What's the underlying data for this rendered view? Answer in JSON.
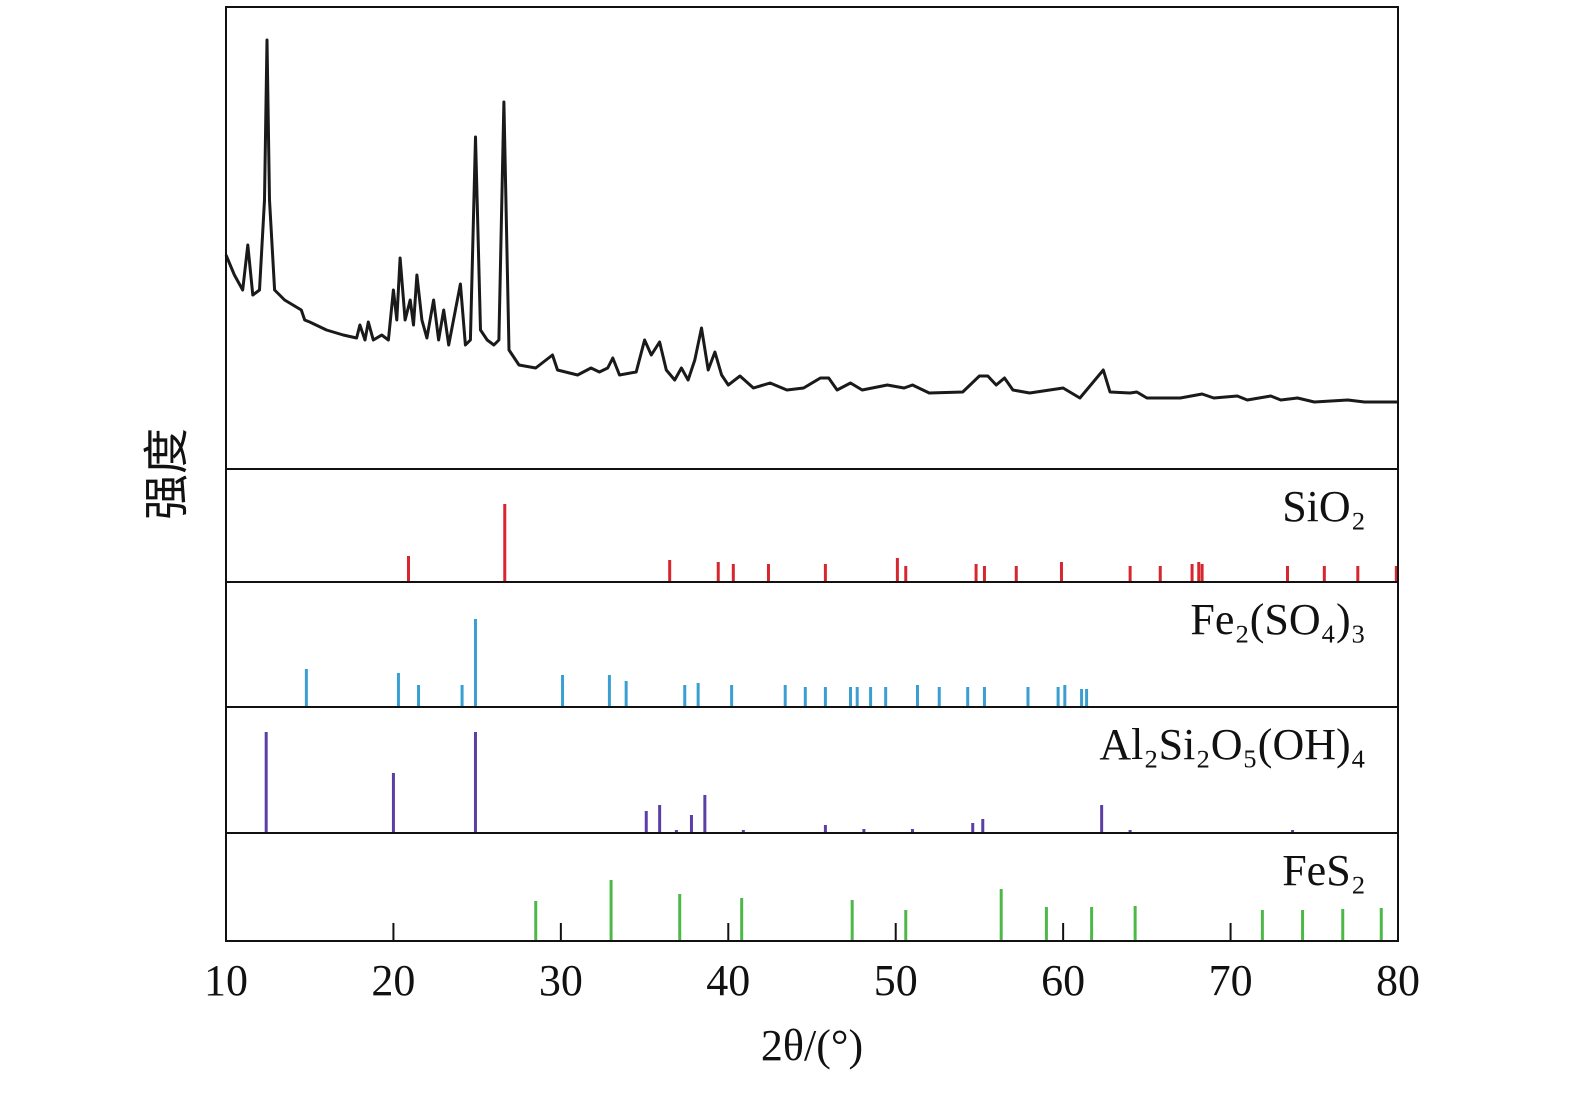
{
  "chart_data": [
    {
      "type": "line",
      "ylabel": "强度",
      "color": "#1a1a1a",
      "xlim": [
        10,
        80
      ],
      "ylim": [
        0,
        462
      ],
      "x": [
        10,
        10.5,
        11,
        11.3,
        11.6,
        12.0,
        12.3,
        12.45,
        12.6,
        12.9,
        13.5,
        14.5,
        14.7,
        15,
        16,
        17,
        17.8,
        18.0,
        18.3,
        18.5,
        18.8,
        19.3,
        19.7,
        20.0,
        20.2,
        20.4,
        20.7,
        21.0,
        21.2,
        21.4,
        21.7,
        22.0,
        22.4,
        22.7,
        23.0,
        23.3,
        24.0,
        24.3,
        24.6,
        24.9,
        25.2,
        25.6,
        26.0,
        26.3,
        26.6,
        26.9,
        27.5,
        28.5,
        29.5,
        29.8,
        31,
        31.8,
        32.3,
        32.8,
        33.1,
        33.5,
        34.5,
        35.0,
        35.4,
        35.9,
        36.3,
        36.8,
        37.2,
        37.6,
        38.0,
        38.4,
        38.8,
        39.2,
        39.6,
        40,
        40.7,
        41.5,
        42.5,
        43.5,
        44.5,
        45.5,
        46,
        46.5,
        47.3,
        48,
        49.5,
        50.5,
        51,
        52,
        54,
        55,
        55.5,
        56,
        56.5,
        57,
        58,
        60,
        61,
        62.4,
        62.8,
        64,
        64.4,
        65,
        67,
        68.3,
        69,
        70.4,
        71,
        72.4,
        73,
        74,
        75,
        77,
        78,
        80
      ],
      "values": [
        214,
        194,
        179,
        224,
        174,
        179,
        269,
        429,
        269,
        179,
        169,
        159,
        149,
        147,
        139,
        134,
        131,
        144,
        129,
        147,
        129,
        134,
        129,
        179,
        149,
        211,
        149,
        169,
        144,
        194,
        149,
        131,
        169,
        129,
        159,
        124,
        185,
        124,
        129,
        332,
        139,
        129,
        124,
        129,
        367,
        119,
        104,
        101,
        114,
        99,
        94,
        101,
        97,
        101,
        111,
        94,
        97,
        129,
        114,
        127,
        99,
        89,
        101,
        89,
        109,
        141,
        99,
        117,
        94,
        84,
        93,
        81,
        86,
        79,
        81,
        91,
        91,
        79,
        86,
        79,
        84,
        81,
        84,
        76,
        77,
        93,
        93,
        84,
        91,
        79,
        76,
        81,
        71,
        99,
        77,
        76,
        77,
        71,
        71,
        75,
        71,
        73,
        69,
        73,
        69,
        71,
        67,
        69,
        67,
        67
      ]
    },
    {
      "type": "stick",
      "name": "SiO₂",
      "color": "#d7262d",
      "xlim": [
        10,
        80
      ],
      "ylim": [
        0,
        113
      ],
      "x": [
        20.9,
        26.65,
        36.5,
        39.4,
        40.3,
        42.4,
        45.8,
        50.1,
        50.6,
        54.8,
        55.3,
        57.2,
        59.9,
        64.0,
        65.8,
        67.7,
        68.1,
        68.3,
        73.4,
        75.6,
        77.6,
        79.9
      ],
      "values": [
        26,
        78,
        22,
        20,
        18,
        18,
        18,
        24,
        16,
        18,
        16,
        16,
        20,
        16,
        16,
        18,
        20,
        18,
        16,
        16,
        16,
        16
      ]
    },
    {
      "type": "stick",
      "name": "Fe₂(SO₄)₃",
      "color": "#3a9fd0",
      "xlim": [
        10,
        80
      ],
      "ylim": [
        0,
        125
      ],
      "x": [
        14.8,
        20.3,
        21.5,
        24.1,
        24.9,
        30.1,
        32.9,
        33.9,
        37.4,
        38.2,
        40.2,
        43.4,
        44.6,
        45.8,
        47.3,
        47.7,
        48.5,
        49.4,
        51.3,
        52.6,
        54.3,
        55.3,
        57.9,
        59.7,
        60.1,
        61.1,
        61.4
      ],
      "values": [
        38,
        34,
        22,
        22,
        88,
        32,
        32,
        26,
        22,
        24,
        22,
        22,
        20,
        20,
        20,
        20,
        20,
        20,
        22,
        20,
        20,
        20,
        20,
        20,
        22,
        18,
        18
      ]
    },
    {
      "type": "stick",
      "name": "Al₂Si₂O₅(OH)₄",
      "color": "#5b3fa5",
      "xlim": [
        10,
        80
      ],
      "ylim": [
        0,
        126
      ],
      "x": [
        12.4,
        20.0,
        24.9,
        35.1,
        35.9,
        36.9,
        37.8,
        38.6,
        40.9,
        45.8,
        48.1,
        51.0,
        54.6,
        55.2,
        62.3,
        64.0,
        73.7
      ],
      "values": [
        101,
        60,
        101,
        22,
        28,
        3,
        18,
        38,
        3,
        8,
        4,
        4,
        10,
        14,
        28,
        3,
        3
      ]
    },
    {
      "type": "stick",
      "name": "FeS₂",
      "color": "#4db848",
      "xlim": [
        10,
        80
      ],
      "ylim": [
        0,
        108
      ],
      "x": [
        28.5,
        33.0,
        37.1,
        40.8,
        47.4,
        50.6,
        56.3,
        59.0,
        61.7,
        64.3,
        71.9,
        74.3,
        76.7,
        79.0
      ],
      "values": [
        40,
        61,
        47,
        43,
        41,
        31,
        52,
        34,
        34,
        35,
        31,
        31,
        32,
        33
      ],
      "xticks": [
        10,
        20,
        30,
        40,
        50,
        60,
        70,
        80
      ],
      "xlabel": "2θ/(°)"
    }
  ]
}
